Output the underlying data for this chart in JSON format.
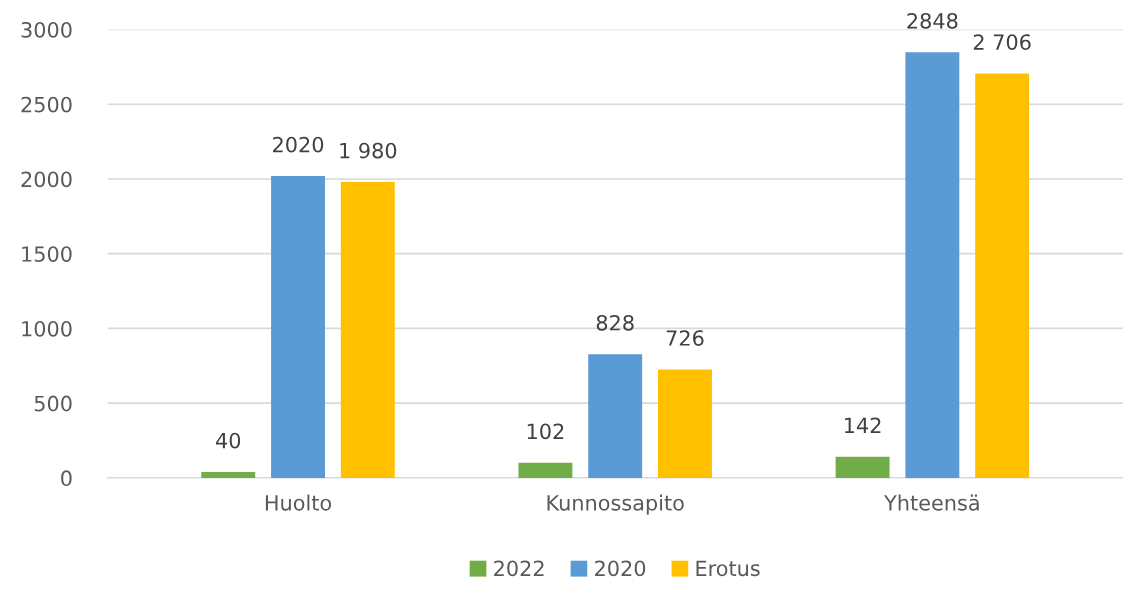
{
  "chart_data": {
    "type": "bar",
    "categories": [
      "Huolto",
      "Kunnossapito",
      "Yhteensä"
    ],
    "series": [
      {
        "name": "2022",
        "color": "#70ad47",
        "values": [
          40,
          102,
          142
        ],
        "value_labels": [
          "40",
          "102",
          "142"
        ]
      },
      {
        "name": "2020",
        "color": "#5b9bd5",
        "values": [
          2020,
          828,
          2848
        ],
        "value_labels": [
          "2020",
          "828",
          "2848"
        ]
      },
      {
        "name": "Erotus",
        "color": "#ffc000",
        "values": [
          1980,
          726,
          2706
        ],
        "value_labels": [
          "1 980",
          "726",
          "2 706"
        ]
      }
    ],
    "ylim": [
      0,
      3000
    ],
    "yticks": [
      0,
      500,
      1000,
      1500,
      2000,
      2500,
      3000
    ],
    "grid": "y",
    "legend": "bottom"
  }
}
